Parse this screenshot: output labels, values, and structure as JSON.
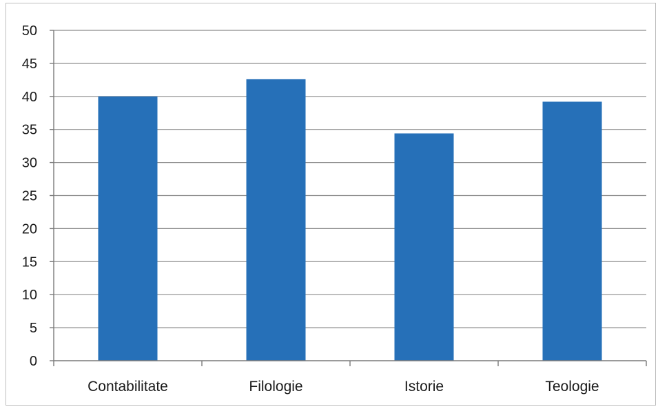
{
  "chart_data": {
    "type": "bar",
    "categories": [
      "Contabilitate",
      "Filologie",
      "Istorie",
      "Teologie"
    ],
    "values": [
      40,
      42.6,
      34.4,
      39.2
    ],
    "ylim": [
      0,
      50
    ],
    "yticks": [
      0,
      5,
      10,
      15,
      20,
      25,
      30,
      35,
      40,
      45,
      50
    ],
    "grid": true,
    "legend": "none",
    "bar_color": "#2670b8",
    "title": "",
    "xlabel": "",
    "ylabel": ""
  }
}
